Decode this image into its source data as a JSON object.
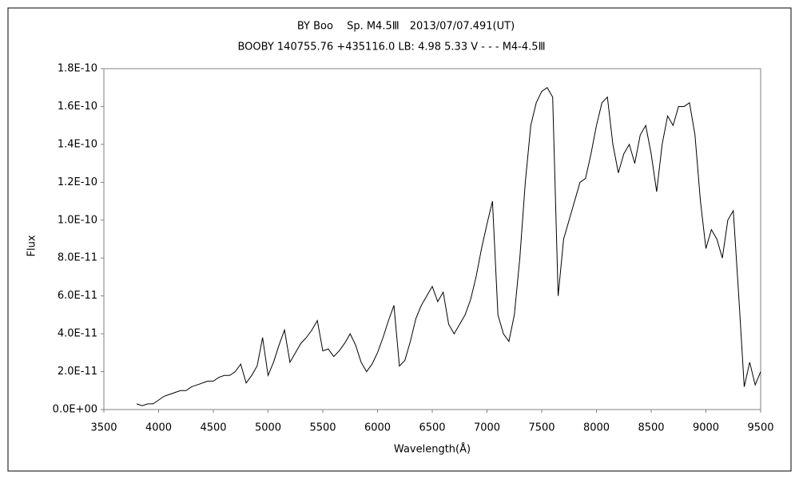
{
  "chart_data": {
    "type": "line",
    "title": "BY Boo　 Sp. M4.5Ⅲ　2013/07/07.491(UT)",
    "subtitle": "BOOBY 140755.76 +435116.0 LB: 4.98 5.33 V - - - M4-4.5Ⅲ",
    "x_label": "Wavelength(Å)",
    "y_label": "Flux",
    "color": "#000000",
    "xlim": [
      3500,
      9500
    ],
    "xticks": [
      3500,
      4000,
      4500,
      5000,
      5500,
      6000,
      6500,
      7000,
      7500,
      8000,
      8500,
      9000,
      9500
    ],
    "ylim": [
      0,
      1.8e-10
    ],
    "yticks": [
      {
        "value": 0,
        "label": "0.0E+00"
      },
      {
        "value": 2e-11,
        "label": "2.0E-11"
      },
      {
        "value": 4e-11,
        "label": "4.0E-11"
      },
      {
        "value": 6e-11,
        "label": "6.0E-11"
      },
      {
        "value": 8e-11,
        "label": "8.0E-11"
      },
      {
        "value": 1e-10,
        "label": "1.0E-10"
      },
      {
        "value": 1.2e-10,
        "label": "1.2E-10"
      },
      {
        "value": 1.4e-10,
        "label": "1.4E-10"
      },
      {
        "value": 1.6e-10,
        "label": "1.6E-10"
      },
      {
        "value": 1.8e-10,
        "label": "1.8E-10"
      }
    ],
    "x": [
      3800,
      3850,
      3900,
      3950,
      4000,
      4050,
      4100,
      4150,
      4200,
      4250,
      4300,
      4350,
      4400,
      4450,
      4500,
      4550,
      4600,
      4650,
      4700,
      4750,
      4800,
      4850,
      4900,
      4950,
      5000,
      5050,
      5100,
      5150,
      5200,
      5250,
      5300,
      5350,
      5400,
      5450,
      5500,
      5550,
      5600,
      5650,
      5700,
      5750,
      5800,
      5850,
      5900,
      5950,
      6000,
      6050,
      6100,
      6150,
      6200,
      6250,
      6300,
      6350,
      6400,
      6450,
      6500,
      6550,
      6600,
      6650,
      6700,
      6750,
      6800,
      6850,
      6900,
      6950,
      7000,
      7050,
      7100,
      7150,
      7200,
      7250,
      7300,
      7350,
      7400,
      7450,
      7500,
      7550,
      7600,
      7650,
      7700,
      7750,
      7800,
      7850,
      7900,
      7950,
      8000,
      8050,
      8100,
      8150,
      8200,
      8250,
      8300,
      8350,
      8400,
      8450,
      8500,
      8550,
      8600,
      8650,
      8700,
      8750,
      8800,
      8850,
      8900,
      8950,
      9000,
      9050,
      9100,
      9150,
      9200,
      9250,
      9300,
      9350,
      9400,
      9450,
      9500
    ],
    "values": [
      3e-12,
      2e-12,
      3e-12,
      3e-12,
      5e-12,
      7e-12,
      8e-12,
      9e-12,
      1e-11,
      1e-11,
      1.2e-11,
      1.3e-11,
      1.4e-11,
      1.5e-11,
      1.5e-11,
      1.7e-11,
      1.8e-11,
      1.8e-11,
      2e-11,
      2.4e-11,
      1.4e-11,
      1.8e-11,
      2.3e-11,
      3.8e-11,
      1.8e-11,
      2.5e-11,
      3.4e-11,
      4.2e-11,
      2.5e-11,
      3e-11,
      3.5e-11,
      3.8e-11,
      4.2e-11,
      4.7e-11,
      3.1e-11,
      3.2e-11,
      2.8e-11,
      3.1e-11,
      3.5e-11,
      4e-11,
      3.4e-11,
      2.5e-11,
      2e-11,
      2.4e-11,
      3e-11,
      3.8e-11,
      4.7e-11,
      5.5e-11,
      2.3e-11,
      2.6e-11,
      3.6e-11,
      4.8e-11,
      5.5e-11,
      6e-11,
      6.5e-11,
      5.7e-11,
      6.2e-11,
      4.5e-11,
      4e-11,
      4.5e-11,
      5e-11,
      5.8e-11,
      7e-11,
      8.5e-11,
      9.8e-11,
      1.1e-10,
      5e-11,
      4e-11,
      3.6e-11,
      5e-11,
      8e-11,
      1.2e-10,
      1.5e-10,
      1.62e-10,
      1.68e-10,
      1.7e-10,
      1.65e-10,
      6e-11,
      9e-11,
      1e-10,
      1.1e-10,
      1.2e-10,
      1.22e-10,
      1.35e-10,
      1.5e-10,
      1.62e-10,
      1.65e-10,
      1.4e-10,
      1.25e-10,
      1.35e-10,
      1.4e-10,
      1.3e-10,
      1.45e-10,
      1.5e-10,
      1.35e-10,
      1.15e-10,
      1.4e-10,
      1.55e-10,
      1.5e-10,
      1.6e-10,
      1.6e-10,
      1.62e-10,
      1.45e-10,
      1.1e-10,
      8.5e-11,
      9.5e-11,
      9e-11,
      8e-11,
      1e-10,
      1.05e-10,
      6e-11,
      1.2e-11,
      2.5e-11,
      1.3e-11,
      2e-11
    ]
  }
}
